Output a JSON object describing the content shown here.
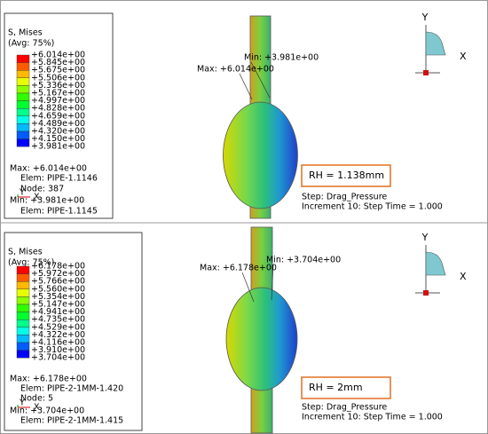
{
  "panels": [
    {
      "legend": {
        "title": "S, Mises",
        "subtitle": "(Avg: 75%)",
        "levels": [
          "+6.014e+00",
          "+5.845e+00",
          "+5.675e+00",
          "+5.506e+00",
          "+5.336e+00",
          "+5.167e+00",
          "+4.997e+00",
          "+4.828e+00",
          "+4.659e+00",
          "+4.489e+00",
          "+4.320e+00",
          "+4.150e+00",
          "+3.981e+00"
        ]
      },
      "max_label": "Max: +6.014e+00",
      "min_label": "Min: +3.981e+00",
      "info": [
        "Max: +6.014e+00",
        "Elem: PIPE-1.1146",
        "Node: 387",
        "Min: +3.981e+00",
        "Elem: PIPE-1.1145"
      ],
      "triad": [
        "Y",
        "X"
      ],
      "rh": "RH = 1.138mm",
      "step": "Step: Drag_Pressure",
      "increment": "Increment     10: Step Time =      1.000",
      "axes": {
        "y": "Y",
        "x": "X"
      }
    },
    {
      "legend": {
        "title": "S, Mises",
        "subtitle": "(Avg: 75%)",
        "levels": [
          "+6.178e+00",
          "+5.972e+00",
          "+5.766e+00",
          "+5.560e+00",
          "+5.354e+00",
          "+5.147e+00",
          "+4.941e+00",
          "+4.735e+00",
          "+4.529e+00",
          "+4.322e+00",
          "+4.116e+00",
          "+3.910e+00",
          "+3.704e+00"
        ]
      },
      "max_label": "Max: +6.178e+00",
      "min_label": "Min: +3.704e+00",
      "info": [
        "Max: +6.178e+00",
        "Elem: PIPE-2-1MM-1.420",
        "Node: 5",
        "Min: +3.704e+00",
        "Elem: PIPE-2-1MM-1.415"
      ],
      "triad": [
        "Y",
        "X"
      ],
      "rh": "RH = 2mm",
      "step": "Step: Drag_Pressure",
      "increment": "Increment     10: Step Time =      1.000",
      "axes": {
        "y": "Y",
        "x": "X"
      }
    }
  ]
}
